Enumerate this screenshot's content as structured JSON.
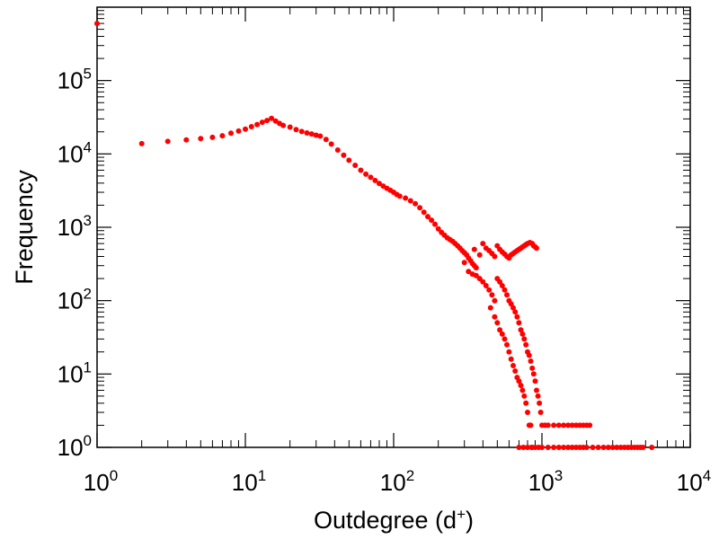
{
  "chart_data": {
    "type": "scatter",
    "title": "",
    "xlabel": {
      "text": "Outdegree (d",
      "sup": "+",
      "close": ")"
    },
    "ylabel": "Frequency",
    "xscale": "log",
    "yscale": "log",
    "xlim": [
      1,
      10000
    ],
    "ylim": [
      1,
      1000000
    ],
    "grid": false,
    "marker_color": "#ff0000",
    "x_ticks": [
      {
        "base": "10",
        "exp": "0",
        "value": 1
      },
      {
        "base": "10",
        "exp": "1",
        "value": 10
      },
      {
        "base": "10",
        "exp": "2",
        "value": 100
      },
      {
        "base": "10",
        "exp": "3",
        "value": 1000
      },
      {
        "base": "10",
        "exp": "4",
        "value": 10000
      }
    ],
    "y_ticks": [
      {
        "base": "10",
        "exp": "0",
        "value": 1
      },
      {
        "base": "10",
        "exp": "1",
        "value": 10
      },
      {
        "base": "10",
        "exp": "2",
        "value": 100
      },
      {
        "base": "10",
        "exp": "3",
        "value": 1000
      },
      {
        "base": "10",
        "exp": "4",
        "value": 10000
      },
      {
        "base": "10",
        "exp": "5",
        "value": 100000
      }
    ],
    "series": [
      {
        "points": [
          [
            1,
            600000
          ],
          [
            2,
            13800
          ],
          [
            3,
            14800
          ],
          [
            4,
            15500
          ],
          [
            5,
            16200
          ],
          [
            6,
            16800
          ],
          [
            7,
            17700
          ],
          [
            8,
            19200
          ],
          [
            9,
            20500
          ],
          [
            10,
            21800
          ],
          [
            11,
            23500
          ],
          [
            12,
            25200
          ],
          [
            13,
            27000
          ],
          [
            14,
            28600
          ],
          [
            15,
            30500
          ],
          [
            16,
            28000
          ],
          [
            17,
            26000
          ],
          [
            18,
            24500
          ],
          [
            20,
            23200
          ],
          [
            22,
            21500
          ],
          [
            24,
            20200
          ],
          [
            26,
            19300
          ],
          [
            28,
            18700
          ],
          [
            30,
            18000
          ],
          [
            32,
            17500
          ],
          [
            35,
            15700
          ],
          [
            38,
            13600
          ],
          [
            42,
            11300
          ],
          [
            46,
            9600
          ],
          [
            50,
            8200
          ],
          [
            55,
            7000
          ],
          [
            60,
            6000
          ],
          [
            65,
            5300
          ],
          [
            70,
            4800
          ],
          [
            75,
            4350
          ],
          [
            80,
            3950
          ],
          [
            85,
            3650
          ],
          [
            90,
            3400
          ],
          [
            95,
            3200
          ],
          [
            100,
            3000
          ],
          [
            105,
            2800
          ],
          [
            110,
            2650
          ],
          [
            120,
            2500
          ],
          [
            130,
            2300
          ],
          [
            140,
            2100
          ],
          [
            150,
            1850
          ],
          [
            160,
            1600
          ],
          [
            170,
            1400
          ],
          [
            180,
            1250
          ],
          [
            190,
            1100
          ],
          [
            200,
            950
          ],
          [
            210,
            850
          ],
          [
            220,
            780
          ],
          [
            230,
            720
          ],
          [
            240,
            680
          ],
          [
            250,
            640
          ],
          [
            260,
            600
          ],
          [
            270,
            560
          ],
          [
            280,
            520
          ],
          [
            290,
            480
          ],
          [
            300,
            450
          ],
          [
            310,
            420
          ],
          [
            320,
            380
          ],
          [
            330,
            350
          ],
          [
            340,
            320
          ],
          [
            350,
            300
          ],
          [
            360,
            280
          ],
          [
            300,
            330
          ],
          [
            320,
            250
          ],
          [
            340,
            230
          ],
          [
            360,
            220
          ],
          [
            380,
            200
          ],
          [
            400,
            180
          ],
          [
            420,
            160
          ],
          [
            440,
            140
          ],
          [
            460,
            120
          ],
          [
            480,
            100
          ],
          [
            350,
            500
          ],
          [
            380,
            420
          ],
          [
            400,
            600
          ],
          [
            420,
            520
          ],
          [
            440,
            480
          ],
          [
            460,
            440
          ],
          [
            480,
            400
          ],
          [
            500,
            560
          ],
          [
            520,
            500
          ],
          [
            540,
            460
          ],
          [
            560,
            430
          ],
          [
            580,
            400
          ],
          [
            600,
            380
          ],
          [
            620,
            420
          ],
          [
            640,
            440
          ],
          [
            660,
            460
          ],
          [
            680,
            480
          ],
          [
            700,
            500
          ],
          [
            720,
            520
          ],
          [
            740,
            540
          ],
          [
            760,
            560
          ],
          [
            780,
            580
          ],
          [
            800,
            600
          ],
          [
            830,
            620
          ],
          [
            860,
            600
          ],
          [
            880,
            560
          ],
          [
            900,
            540
          ],
          [
            920,
            520
          ],
          [
            450,
            80
          ],
          [
            480,
            60
          ],
          [
            500,
            50
          ],
          [
            520,
            40
          ],
          [
            540,
            35
          ],
          [
            560,
            30
          ],
          [
            580,
            25
          ],
          [
            600,
            20
          ],
          [
            620,
            16
          ],
          [
            640,
            13
          ],
          [
            660,
            11
          ],
          [
            680,
            9
          ],
          [
            700,
            8
          ],
          [
            720,
            7
          ],
          [
            740,
            6
          ],
          [
            760,
            5
          ],
          [
            780,
            4
          ],
          [
            800,
            3
          ],
          [
            820,
            2
          ],
          [
            840,
            2
          ],
          [
            860,
            1
          ],
          [
            500,
            200
          ],
          [
            520,
            180
          ],
          [
            540,
            160
          ],
          [
            560,
            140
          ],
          [
            580,
            120
          ],
          [
            600,
            100
          ],
          [
            620,
            90
          ],
          [
            640,
            80
          ],
          [
            660,
            70
          ],
          [
            680,
            60
          ],
          [
            700,
            50
          ],
          [
            720,
            40
          ],
          [
            740,
            35
          ],
          [
            760,
            30
          ],
          [
            780,
            25
          ],
          [
            800,
            20
          ],
          [
            820,
            18
          ],
          [
            840,
            15
          ],
          [
            860,
            12
          ],
          [
            880,
            10
          ],
          [
            900,
            8
          ],
          [
            920,
            6
          ],
          [
            940,
            5
          ],
          [
            960,
            4
          ],
          [
            980,
            3
          ],
          [
            1000,
            2
          ],
          [
            1050,
            2
          ],
          [
            1100,
            2
          ],
          [
            1200,
            2
          ],
          [
            1300,
            2
          ],
          [
            1400,
            2
          ],
          [
            1500,
            2
          ],
          [
            1600,
            2
          ],
          [
            1700,
            2
          ],
          [
            1800,
            2
          ],
          [
            1900,
            2
          ],
          [
            2000,
            2
          ],
          [
            2100,
            2
          ],
          [
            700,
            1
          ],
          [
            750,
            1
          ],
          [
            800,
            1
          ],
          [
            850,
            1
          ],
          [
            900,
            1
          ],
          [
            950,
            1
          ],
          [
            1000,
            1
          ],
          [
            1100,
            1
          ],
          [
            1200,
            1
          ],
          [
            1300,
            1
          ],
          [
            1400,
            1
          ],
          [
            1500,
            1
          ],
          [
            1600,
            1
          ],
          [
            1700,
            1
          ],
          [
            1800,
            1
          ],
          [
            1900,
            1
          ],
          [
            2000,
            1
          ],
          [
            2200,
            1
          ],
          [
            2400,
            1
          ],
          [
            2600,
            1
          ],
          [
            2800,
            1
          ],
          [
            3000,
            1
          ],
          [
            3200,
            1
          ],
          [
            3400,
            1
          ],
          [
            3600,
            1
          ],
          [
            3800,
            1
          ],
          [
            4000,
            1
          ],
          [
            4200,
            1
          ],
          [
            4400,
            1
          ],
          [
            4600,
            1
          ],
          [
            4800,
            1
          ],
          [
            5500,
            1
          ]
        ]
      }
    ]
  }
}
